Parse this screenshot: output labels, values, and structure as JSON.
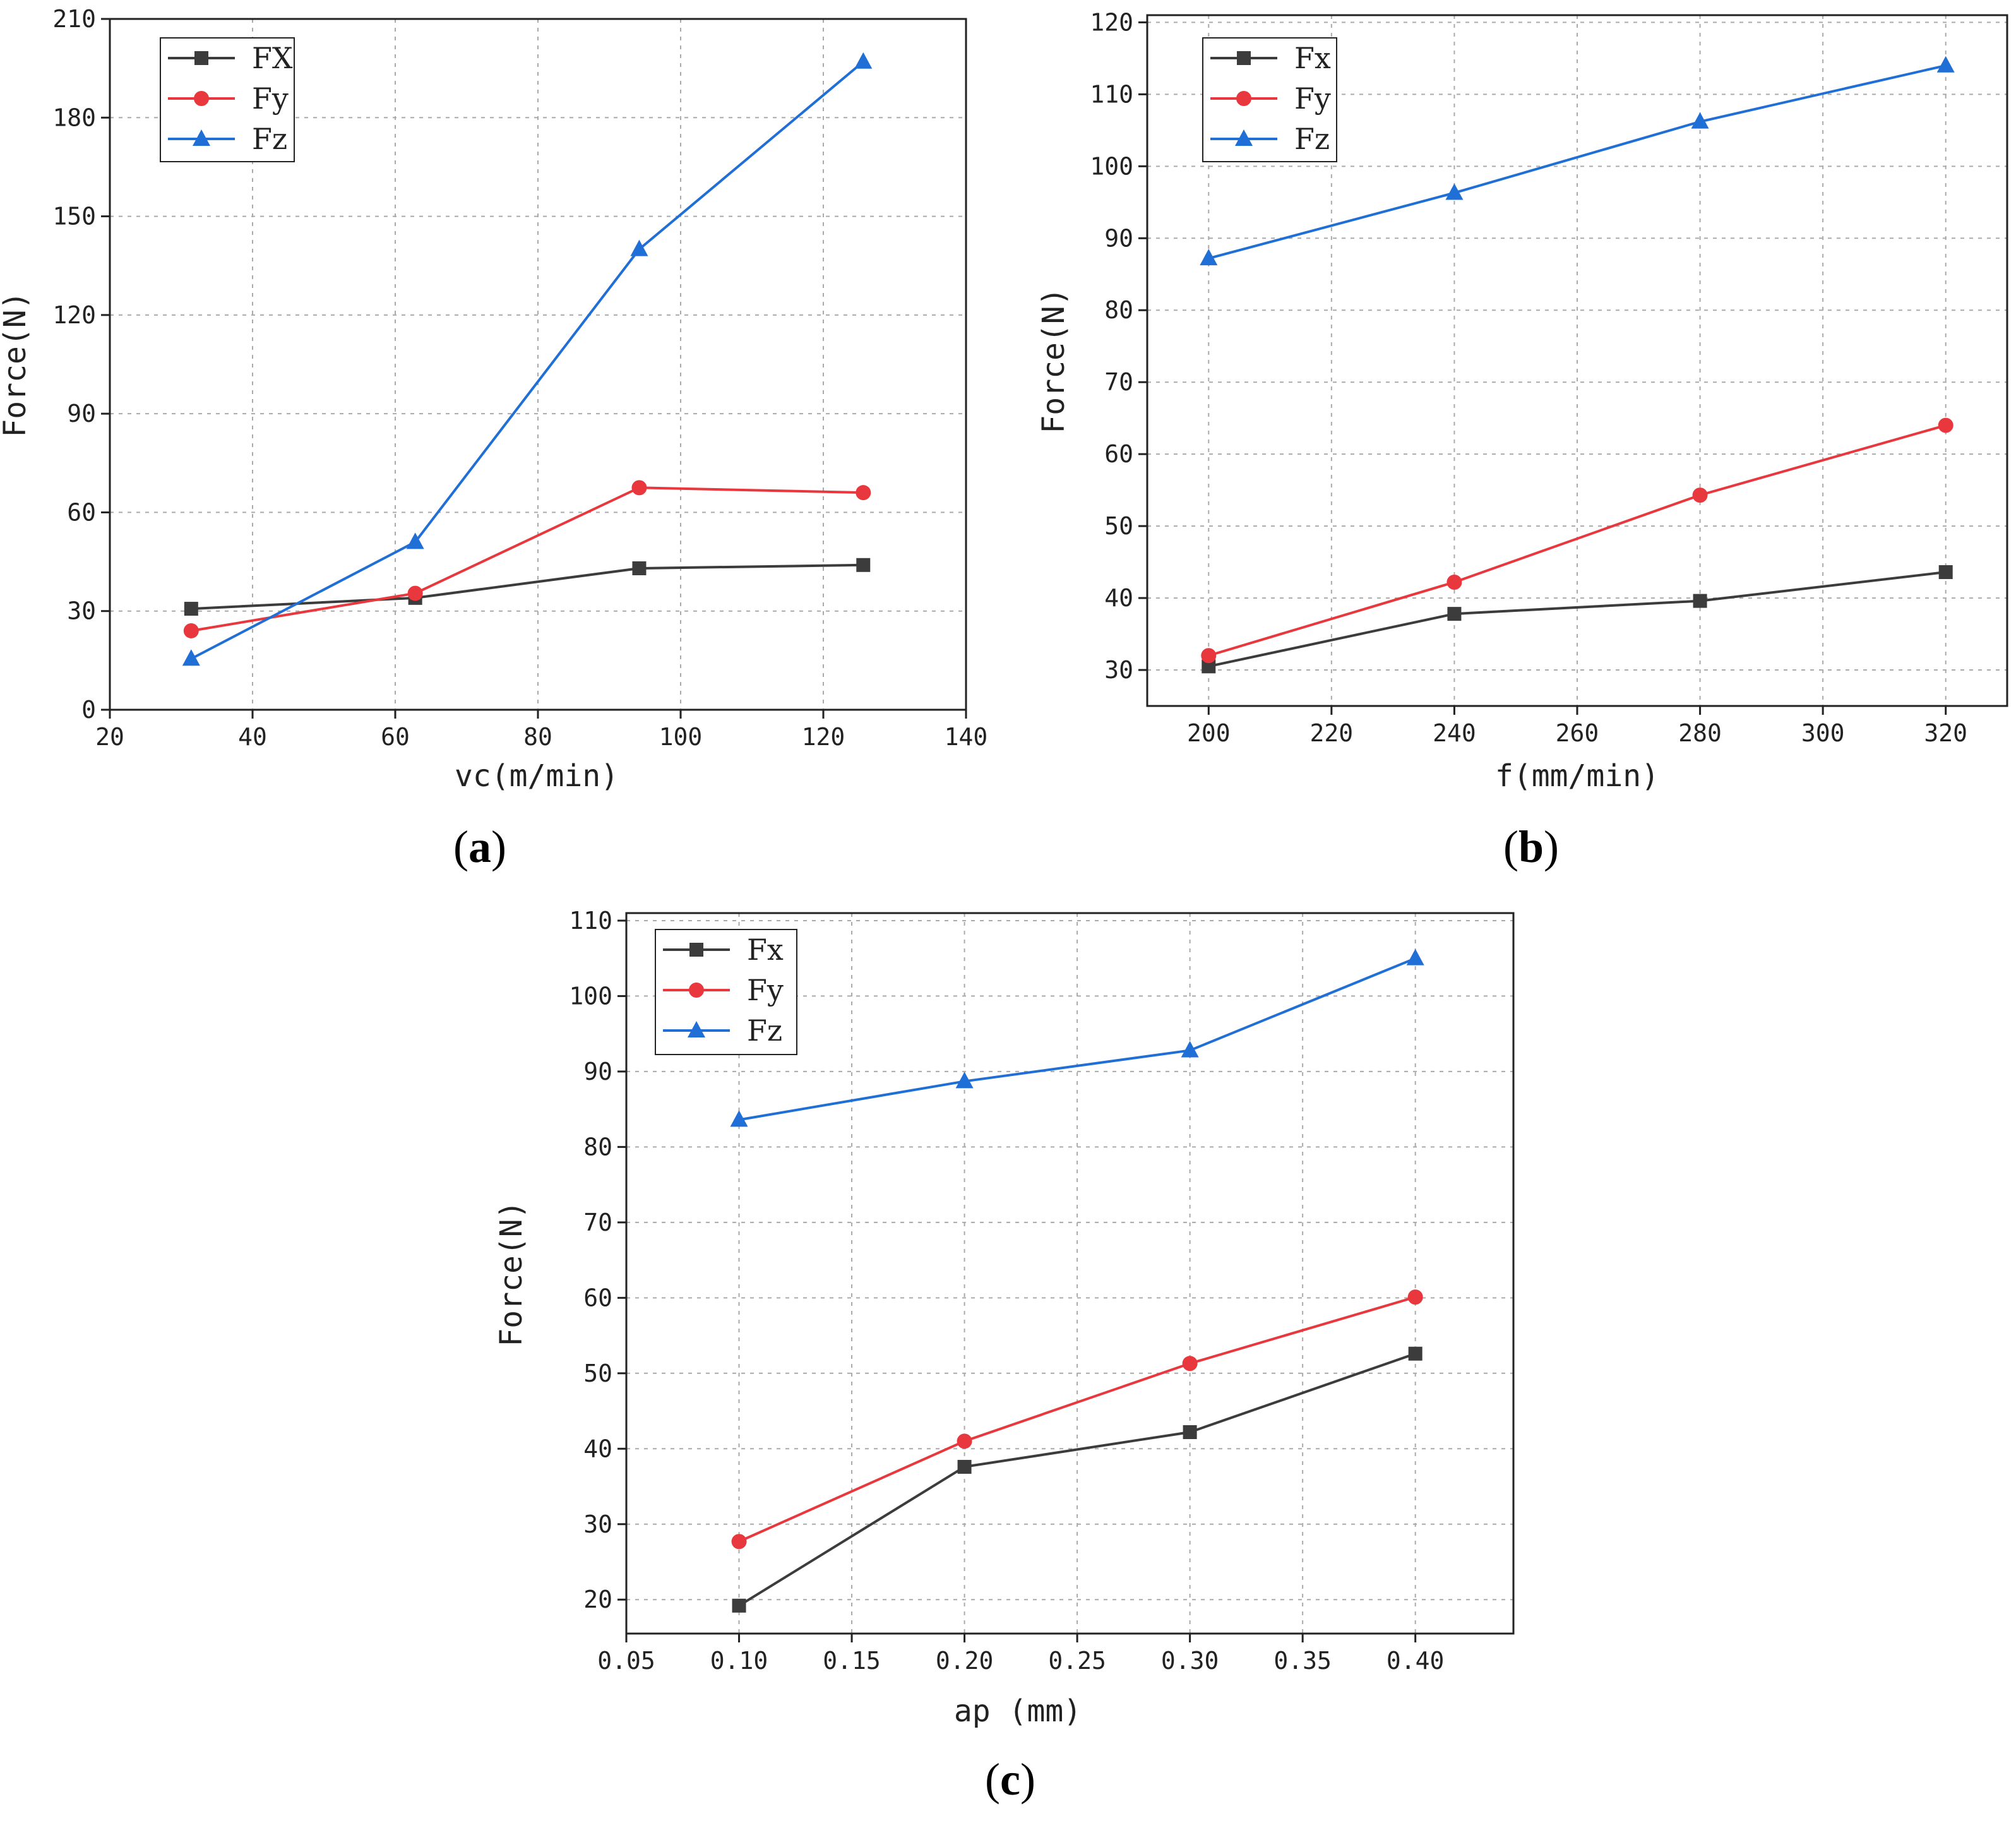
{
  "series_colors": {
    "Fx": "#3c3c3c",
    "Fy": "#e8383d",
    "Fz": "#1f6fd6"
  },
  "chart_data": [
    {
      "type": "line",
      "panel": "(a)",
      "xlabel": "vc(m/min)",
      "ylabel": "Force(N)",
      "xlim": [
        20,
        140
      ],
      "ylim": [
        0,
        210
      ],
      "xticks": [
        20,
        40,
        60,
        80,
        100,
        120,
        140
      ],
      "yticks": [
        0,
        30,
        60,
        90,
        120,
        150,
        180,
        210
      ],
      "x": [
        31.4,
        62.8,
        94.2,
        125.6
      ],
      "series": [
        {
          "name": "FX",
          "key": "Fx",
          "marker": "square",
          "values": [
            30.7,
            34.0,
            43.0,
            44.0
          ]
        },
        {
          "name": "Fy",
          "key": "Fy",
          "marker": "circle",
          "values": [
            24.0,
            35.4,
            67.5,
            66.0
          ]
        },
        {
          "name": "Fz",
          "key": "Fz",
          "marker": "triangle",
          "values": [
            15.5,
            51.0,
            140.0,
            197.0
          ]
        }
      ]
    },
    {
      "type": "line",
      "panel": "(b)",
      "xlabel": "f(mm/min)",
      "ylabel": "Force(N)",
      "xlim": [
        190,
        330
      ],
      "ylim": [
        25,
        121
      ],
      "xticks": [
        200,
        220,
        240,
        260,
        280,
        300,
        320
      ],
      "yticks": [
        30,
        40,
        50,
        60,
        70,
        80,
        90,
        100,
        110,
        120
      ],
      "x": [
        200,
        240,
        280,
        320
      ],
      "series": [
        {
          "name": "Fx",
          "key": "Fx",
          "marker": "square",
          "values": [
            30.5,
            37.8,
            39.6,
            43.6
          ]
        },
        {
          "name": "Fy",
          "key": "Fy",
          "marker": "circle",
          "values": [
            32.0,
            42.2,
            54.3,
            64.0
          ]
        },
        {
          "name": "Fz",
          "key": "Fz",
          "marker": "triangle",
          "values": [
            87.2,
            96.3,
            106.2,
            114.0
          ]
        }
      ]
    },
    {
      "type": "line",
      "panel": "(c)",
      "xlabel": "ap (mm)",
      "ylabel": "Force(N)",
      "xlim": [
        0.05,
        0.4435
      ],
      "ylim": [
        15.5,
        111
      ],
      "xticks": [
        0.05,
        0.1,
        0.15,
        0.2,
        0.25,
        0.3,
        0.35,
        0.4
      ],
      "xtick_labels": [
        "0.05",
        "0.10",
        "0.15",
        "0.20",
        "0.25",
        "0.30",
        "0.35",
        "0.40"
      ],
      "yticks": [
        20,
        30,
        40,
        50,
        60,
        70,
        80,
        90,
        100,
        110
      ],
      "x": [
        0.1,
        0.2,
        0.3,
        0.4
      ],
      "series": [
        {
          "name": "Fx",
          "key": "Fx",
          "marker": "square",
          "values": [
            19.2,
            37.6,
            42.2,
            52.6
          ]
        },
        {
          "name": "Fy",
          "key": "Fy",
          "marker": "circle",
          "values": [
            27.7,
            41.0,
            51.3,
            60.1
          ]
        },
        {
          "name": "Fz",
          "key": "Fz",
          "marker": "triangle",
          "values": [
            83.6,
            88.7,
            92.8,
            105.0
          ]
        }
      ]
    }
  ]
}
